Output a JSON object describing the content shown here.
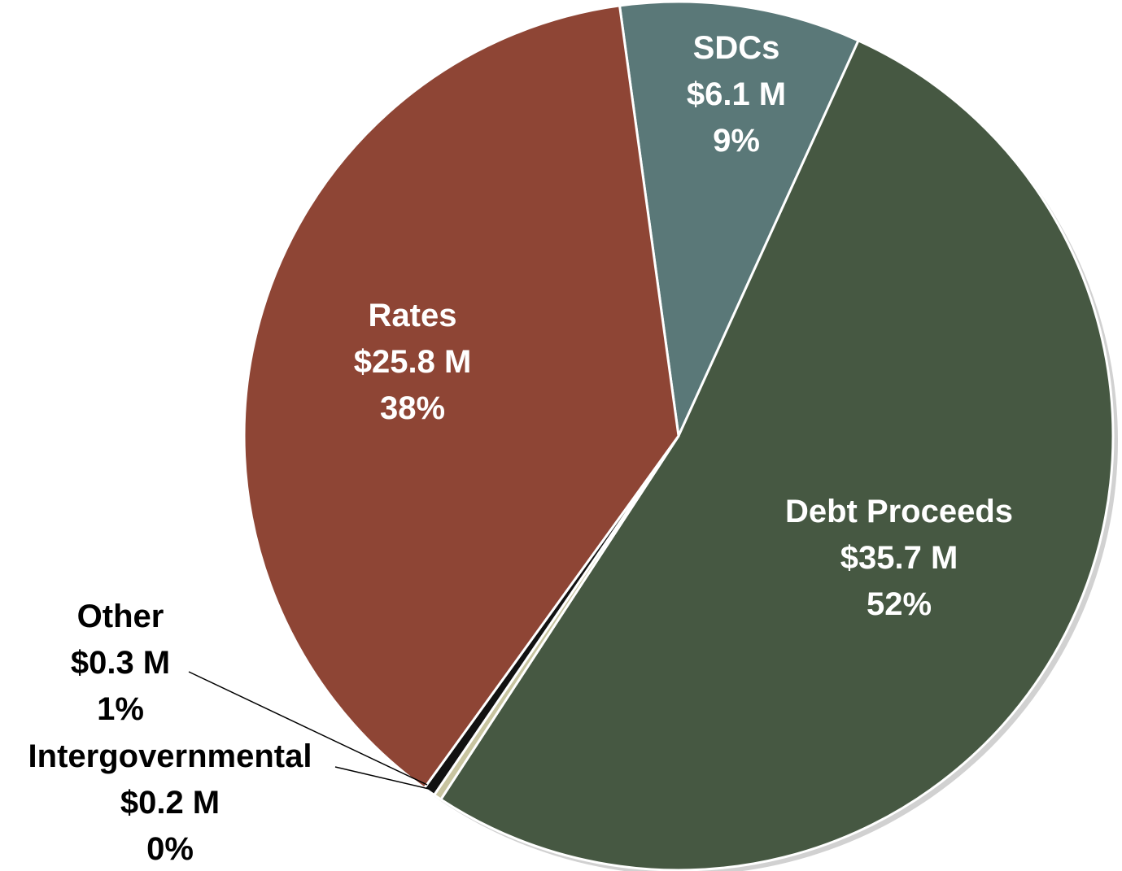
{
  "chart_data": {
    "type": "pie",
    "slices": [
      {
        "name": "SDCs",
        "value_label": "$6.1 M",
        "value": 6.1,
        "percent": 9,
        "percent_label": "9%",
        "color": "#5a7878",
        "text_color": "#ffffff"
      },
      {
        "name": "Debt Proceeds",
        "value_label": "$35.7 M",
        "value": 35.7,
        "percent": 52,
        "percent_label": "52%",
        "color": "#465842",
        "text_color": "#ffffff"
      },
      {
        "name": "Intergovernmental",
        "value_label": "$0.2 M",
        "value": 0.2,
        "percent": 0,
        "percent_label": "0%",
        "color": "#c8c4a0",
        "text_color": "#000000"
      },
      {
        "name": "Other",
        "value_label": "$0.3 M",
        "value": 0.3,
        "percent": 1,
        "percent_label": "1%",
        "color": "#111111",
        "text_color": "#000000"
      },
      {
        "name": "Rates",
        "value_label": "$25.8 M",
        "value": 25.8,
        "percent": 38,
        "percent_label": "38%",
        "color": "#8e4535",
        "text_color": "#ffffff"
      }
    ]
  }
}
